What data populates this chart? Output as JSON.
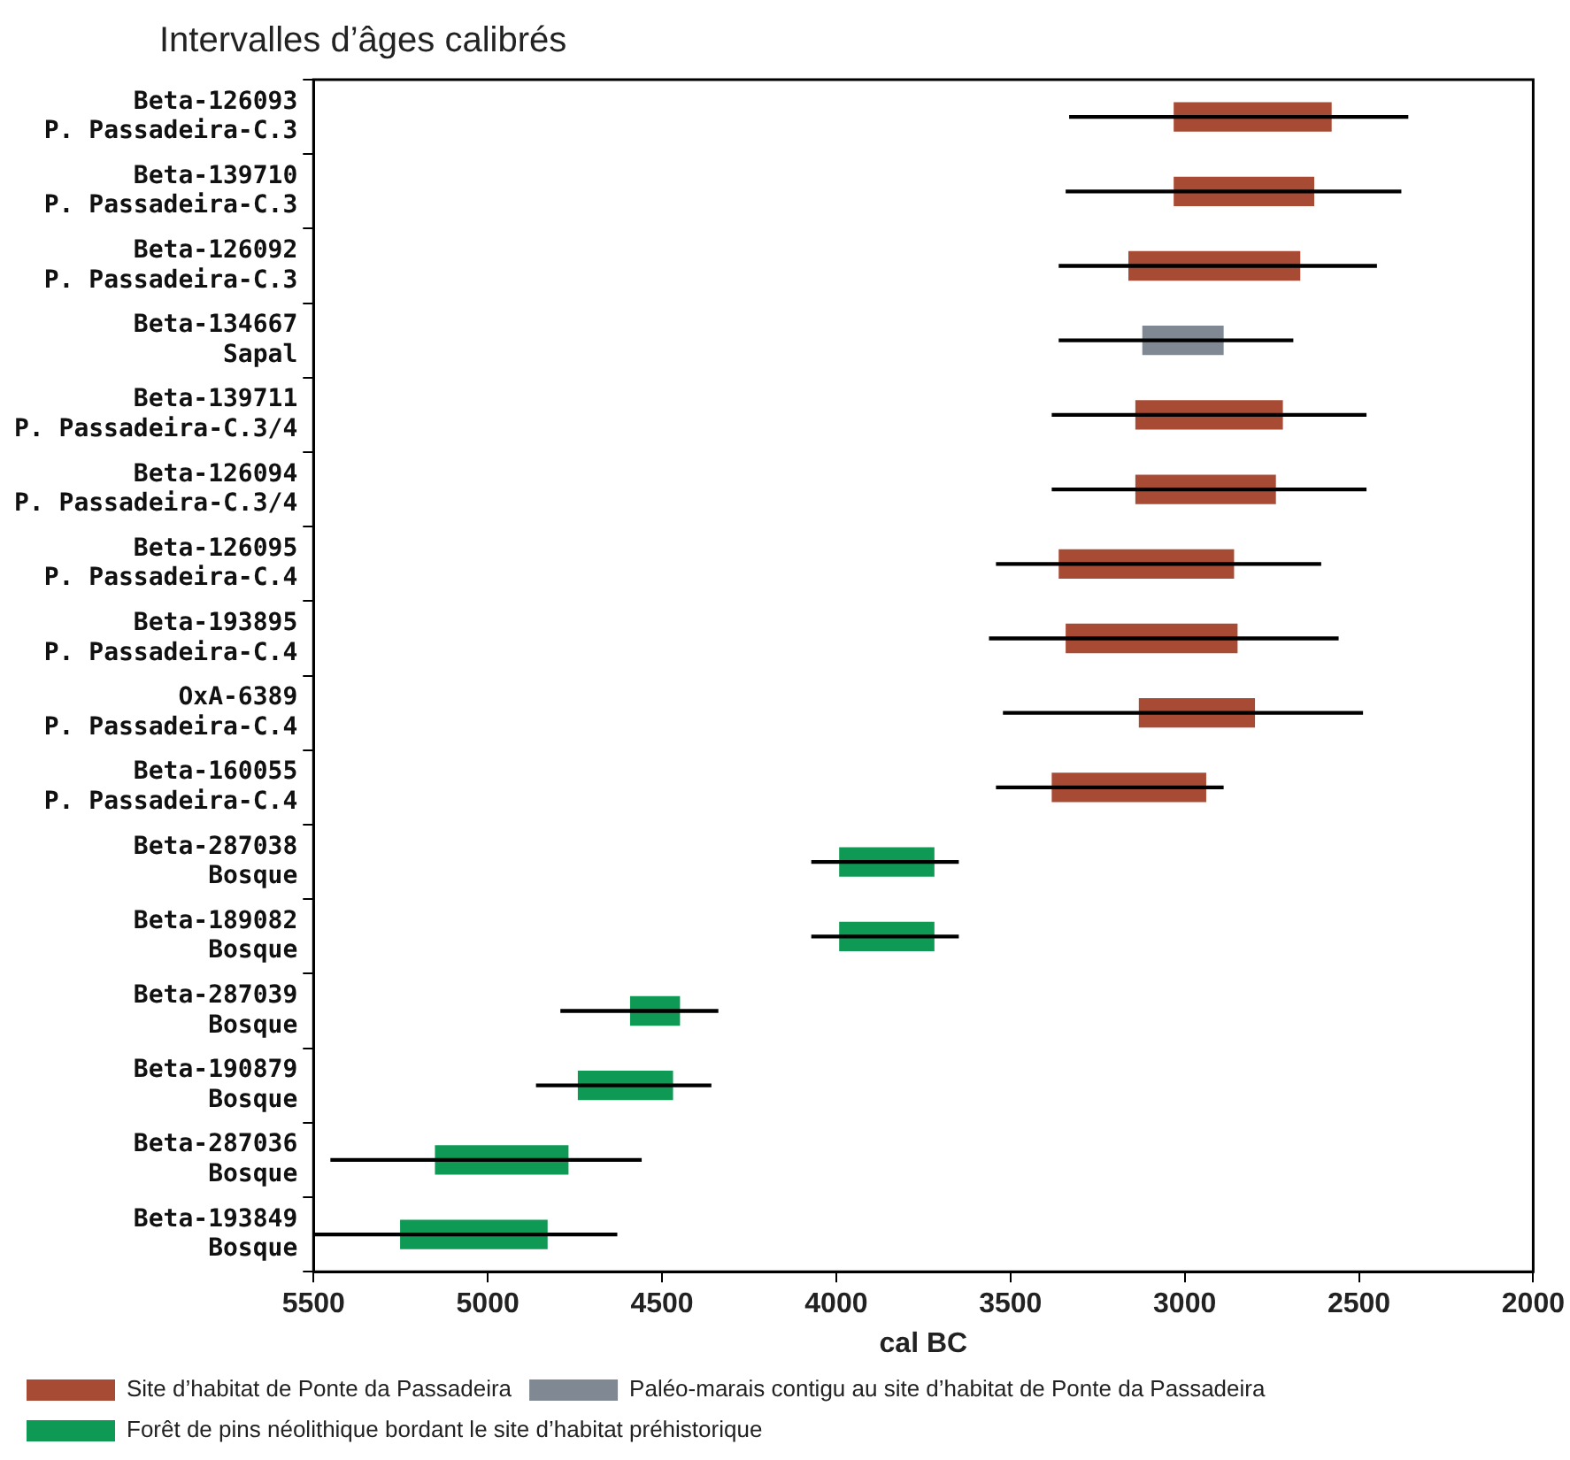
{
  "chart_data": {
    "type": "bar",
    "orientation": "horizontal",
    "title": "Intervalles d’âges calibrés",
    "xlabel": "cal BC",
    "categories": [
      "Beta-126093\nP. Passadeira-C.3",
      "Beta-139710\nP. Passadeira-C.3",
      "Beta-126092\nP. Passadeira-C.3",
      "Beta-134667\nSapal",
      "Beta-139711\nP. Passadeira-C.3/4",
      "Beta-126094\nP. Passadeira-C.3/4",
      "Beta-126095\nP. Passadeira-C.4",
      "Beta-193895\nP. Passadeira-C.4",
      "OxA-6389\nP. Passadeira-C.4",
      "Beta-160055\nP. Passadeira-C.4",
      "Beta-287038\nBosque",
      "Beta-189082\nBosque",
      "Beta-287039\nBosque",
      "Beta-190879\nBosque",
      "Beta-287036\nBosque",
      "Beta-193849\nBosque"
    ],
    "series": [
      {
        "color": "#000000",
        "base": [
          2360,
          2380,
          2450,
          2690,
          2480,
          2480,
          2610,
          2560,
          2490,
          2890,
          3650,
          3650,
          4340,
          4360,
          4560,
          4630
        ],
        "values": [
          970,
          960,
          910,
          670,
          900,
          900,
          930,
          1000,
          1030,
          650,
          420,
          420,
          450,
          500,
          890,
          870
        ]
      },
      {
        "name": "Site d’habitat de Ponte da Passadeira",
        "color": "#a84b34",
        "base": [
          2580,
          2630,
          2670,
          null,
          2720,
          2740,
          2860,
          2850,
          2800,
          2940,
          null,
          null,
          null,
          null,
          null,
          null
        ],
        "values": [
          450,
          400,
          490,
          null,
          420,
          400,
          500,
          490,
          330,
          440,
          null,
          null,
          null,
          null,
          null,
          null
        ]
      },
      {
        "name": "Paléo-marais contigu au site d’habitat de Ponte da Passadeira",
        "color": "#7f8893",
        "base": [
          null,
          null,
          null,
          2890,
          null,
          null,
          null,
          null,
          null,
          null,
          null,
          null,
          null,
          null,
          null,
          null
        ],
        "values": [
          null,
          null,
          null,
          230,
          null,
          null,
          null,
          null,
          null,
          null,
          null,
          null,
          null,
          null,
          null,
          null
        ]
      },
      {
        "name": "Forêt de pins néolithique bordant le site d’habitat préhistorique",
        "color": "#0e9a55",
        "base": [
          null,
          null,
          null,
          null,
          null,
          null,
          null,
          null,
          null,
          null,
          3720,
          3720,
          4450,
          4470,
          4770,
          4830
        ],
        "values": [
          null,
          null,
          null,
          null,
          null,
          null,
          null,
          null,
          null,
          null,
          270,
          270,
          140,
          270,
          380,
          420
        ]
      }
    ],
    "xlim": [
      5500,
      2000
    ],
    "xticks": [
      5500,
      5000,
      4500,
      4000,
      3500,
      3000,
      2500,
      2000
    ],
    "legend": "bottom"
  }
}
